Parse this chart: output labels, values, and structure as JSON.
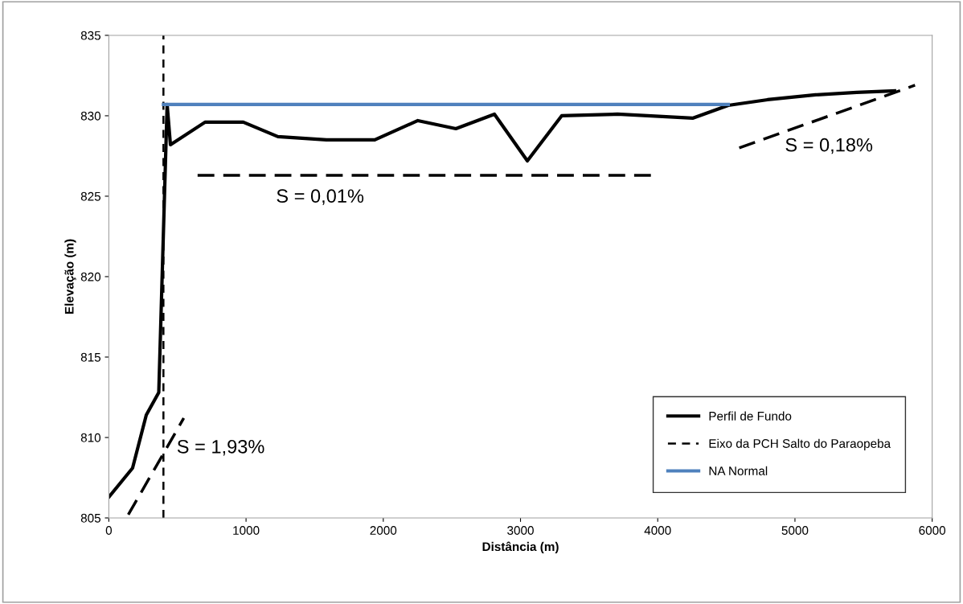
{
  "chart_data": {
    "type": "line",
    "xlabel": "Distância (m)",
    "ylabel": "Elevação (m)",
    "xlim": [
      0,
      6000
    ],
    "xticks": [
      0,
      1000,
      2000,
      3000,
      4000,
      5000,
      6000
    ],
    "ylim": [
      805,
      835
    ],
    "yticks": [
      805,
      810,
      815,
      820,
      825,
      830,
      835
    ],
    "grid": false,
    "legend": "bottom right",
    "line_style": "solid",
    "marker": "none",
    "series": [
      {
        "name": "Perfil de Fundo",
        "color": "#000000",
        "x": [
          0,
          173,
          273,
          364,
          425,
          449,
          701,
          980,
          1232,
          1586,
          1938,
          2252,
          2529,
          2810,
          3050,
          3300,
          3706,
          4254,
          4514,
          4800,
          5150,
          5450,
          5726
        ],
        "values": [
          806.3,
          808.1,
          811.4,
          812.8,
          830.7,
          828.2,
          829.6,
          829.6,
          828.7,
          828.5,
          828.5,
          829.7,
          829.2,
          830.1,
          827.2,
          830.0,
          830.1,
          829.85,
          830.65,
          831.0,
          831.3,
          831.45,
          831.55
        ]
      },
      {
        "name": "Eixo da PCH Salto do Paraopeba",
        "color": "#000000",
        "line_style": "dashed",
        "x": [
          398,
          398
        ],
        "values": [
          805,
          835
        ]
      },
      {
        "name": "NA Normal",
        "color": "#4f81bd",
        "x": [
          398,
          4514
        ],
        "values": [
          830.7,
          830.7
        ]
      },
      {
        "color": "#000000",
        "line_style": "dashed",
        "x": [
          142,
          546
        ],
        "values": [
          805.2,
          811.2
        ]
      },
      {
        "color": "#000000",
        "line_style": "dashed",
        "x": [
          647,
          3952
        ],
        "values": [
          826.3,
          826.3
        ]
      },
      {
        "color": "#000000",
        "line_style": "dashed",
        "x": [
          4594,
          5875
        ],
        "values": [
          828.0,
          831.9
        ]
      }
    ],
    "annotations": [
      "S = 1,93%",
      "S = 0,01%",
      "S = 0,18%"
    ]
  }
}
